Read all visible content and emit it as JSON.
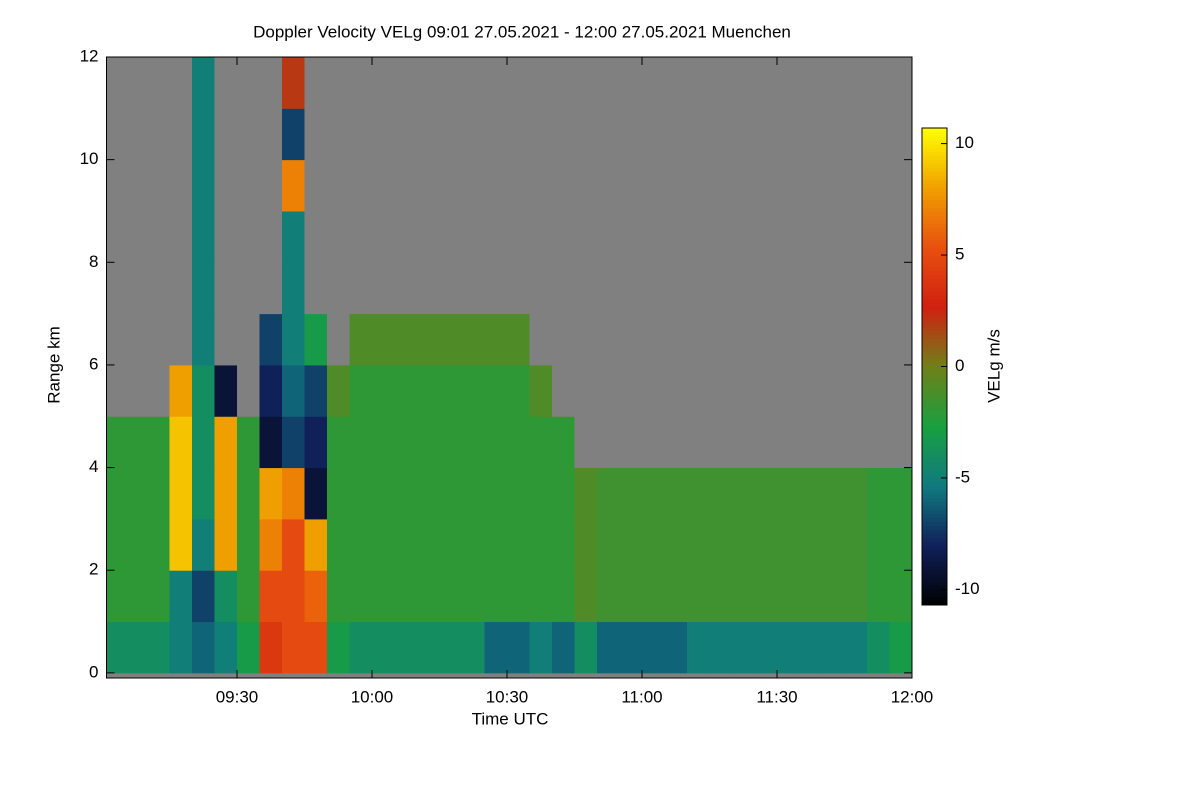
{
  "chart_data": {
    "type": "heatmap",
    "title": "Doppler Velocity VELg   09:01 27.05.2021 - 12:00 27.05.2021 Muenchen",
    "x_label": "Time UTC",
    "y_label": "Range km",
    "colorbar_label": "VELg m/s",
    "xlim": [
      "09:01",
      "12:00"
    ],
    "xticks": [
      "09:30",
      "10:00",
      "10:30",
      "11:00",
      "11:30",
      "12:00"
    ],
    "ylim": [
      -0.1,
      12
    ],
    "yticks": [
      0,
      2,
      4,
      6,
      8,
      10,
      12
    ],
    "zlim": [
      -10.7,
      10.7
    ],
    "zticks": [
      -10,
      -5,
      0,
      5,
      10
    ],
    "colorscale": [
      "#000000",
      "#10205a",
      "#107a80",
      "#18a040",
      "#70801a",
      "#d02010",
      "#e85010",
      "#f0a000",
      "#ffff00"
    ],
    "null_color": "#808080",
    "x": [
      "09:01",
      "09:05",
      "09:10",
      "09:15",
      "09:20",
      "09:25",
      "09:30",
      "09:35",
      "09:40",
      "09:45",
      "09:50",
      "09:55",
      "10:00",
      "10:05",
      "10:10",
      "10:15",
      "10:20",
      "10:25",
      "10:30",
      "10:35",
      "10:40",
      "10:45",
      "10:50",
      "10:55",
      "11:00",
      "11:05",
      "11:10",
      "11:15",
      "11:20",
      "11:25",
      "11:30",
      "11:35",
      "11:40",
      "11:45",
      "11:50",
      "11:55"
    ],
    "ybins": [
      0,
      1,
      2,
      3,
      4,
      5,
      6,
      7,
      8,
      9,
      10,
      11,
      12
    ],
    "values": [
      [
        -4,
        -2,
        -2,
        -2,
        -2,
        null,
        null,
        null,
        null,
        null,
        null,
        null
      ],
      [
        -4,
        -2,
        -2,
        -2,
        -2,
        null,
        null,
        null,
        null,
        null,
        null,
        null
      ],
      [
        -4,
        -2,
        -2,
        -2,
        -2,
        null,
        null,
        null,
        null,
        null,
        null,
        null
      ],
      [
        -5,
        -5,
        9,
        9,
        9,
        8,
        null,
        null,
        null,
        null,
        null,
        null
      ],
      [
        -6,
        -7,
        -5,
        -4,
        -4,
        -4,
        -5,
        -5,
        -5,
        -5,
        -5,
        -5
      ],
      [
        -5,
        -4,
        8,
        8,
        8,
        -9,
        null,
        null,
        null,
        null,
        null,
        null
      ],
      [
        -3,
        -2,
        -2,
        -2,
        -2,
        null,
        null,
        null,
        null,
        null,
        null,
        null
      ],
      [
        4,
        5,
        7,
        8,
        -9,
        -8,
        -7,
        null,
        null,
        null,
        null,
        null
      ],
      [
        5,
        5,
        5,
        7,
        -7,
        -6,
        -5,
        -5,
        -5,
        7,
        -7,
        2
      ],
      [
        5,
        6,
        8,
        -9,
        -8,
        -7,
        -3,
        null,
        null,
        null,
        null,
        null
      ],
      [
        -3,
        -2,
        -2,
        -2,
        -2,
        -1,
        null,
        null,
        null,
        null,
        null,
        null
      ],
      [
        -4,
        -2,
        -2,
        -2,
        -2,
        -2,
        -1,
        null,
        null,
        null,
        null,
        null
      ],
      [
        -4,
        -2,
        -2,
        -2,
        -2,
        -2,
        -1,
        null,
        null,
        null,
        null,
        null
      ],
      [
        -4,
        -2,
        -2,
        -2,
        -2,
        -2,
        -1,
        null,
        null,
        null,
        null,
        null
      ],
      [
        -4,
        -2,
        -2,
        -2,
        -2,
        -2,
        -1,
        null,
        null,
        null,
        null,
        null
      ],
      [
        -4,
        -2,
        -2,
        -2,
        -2,
        -2,
        -1,
        null,
        null,
        null,
        null,
        null
      ],
      [
        -4,
        -2,
        -2,
        -2,
        -2,
        -2,
        -1,
        null,
        null,
        null,
        null,
        null
      ],
      [
        -6,
        -2,
        -2,
        -2,
        -2,
        -2,
        -1,
        null,
        null,
        null,
        null,
        null
      ],
      [
        -6,
        -2,
        -2,
        -2,
        -2,
        -2,
        -1,
        null,
        null,
        null,
        null,
        null
      ],
      [
        -5,
        -2,
        -2,
        -2,
        -2,
        -1,
        null,
        null,
        null,
        null,
        null,
        null
      ],
      [
        -6,
        -2,
        -2,
        -2,
        -2,
        null,
        null,
        null,
        null,
        null,
        null,
        null
      ],
      [
        -4,
        -1,
        -1,
        -1,
        null,
        null,
        null,
        null,
        null,
        null,
        null,
        null
      ],
      [
        -6,
        -1.5,
        -1.5,
        -1.5,
        null,
        null,
        null,
        null,
        null,
        null,
        null,
        null
      ],
      [
        -6,
        -1.5,
        -1.5,
        -1.5,
        null,
        null,
        null,
        null,
        null,
        null,
        null,
        null
      ],
      [
        -6,
        -1.5,
        -1.5,
        -1.5,
        null,
        null,
        null,
        null,
        null,
        null,
        null,
        null
      ],
      [
        -6,
        -1.5,
        -1.5,
        -1.5,
        null,
        null,
        null,
        null,
        null,
        null,
        null,
        null
      ],
      [
        -5,
        -1.5,
        -1.5,
        -1.5,
        null,
        null,
        null,
        null,
        null,
        null,
        null,
        null
      ],
      [
        -5,
        -1.5,
        -1.5,
        -1.5,
        null,
        null,
        null,
        null,
        null,
        null,
        null,
        null
      ],
      [
        -5,
        -1.5,
        -1.5,
        -1.5,
        null,
        null,
        null,
        null,
        null,
        null,
        null,
        null
      ],
      [
        -5,
        -1.5,
        -1.5,
        -1.5,
        null,
        null,
        null,
        null,
        null,
        null,
        null,
        null
      ],
      [
        -5,
        -1.5,
        -1.5,
        -1.5,
        null,
        null,
        null,
        null,
        null,
        null,
        null,
        null
      ],
      [
        -5,
        -1.5,
        -1.5,
        -1.5,
        null,
        null,
        null,
        null,
        null,
        null,
        null,
        null
      ],
      [
        -5,
        -1.5,
        -1.5,
        -1.5,
        null,
        null,
        null,
        null,
        null,
        null,
        null,
        null
      ],
      [
        -5,
        -1.5,
        -1.5,
        -1.5,
        null,
        null,
        null,
        null,
        null,
        null,
        null,
        null
      ],
      [
        -4,
        -2,
        -2,
        -2,
        null,
        null,
        null,
        null,
        null,
        null,
        null,
        null
      ],
      [
        -3,
        -2,
        -2,
        -2,
        null,
        null,
        null,
        null,
        null,
        null,
        null,
        null
      ]
    ]
  }
}
